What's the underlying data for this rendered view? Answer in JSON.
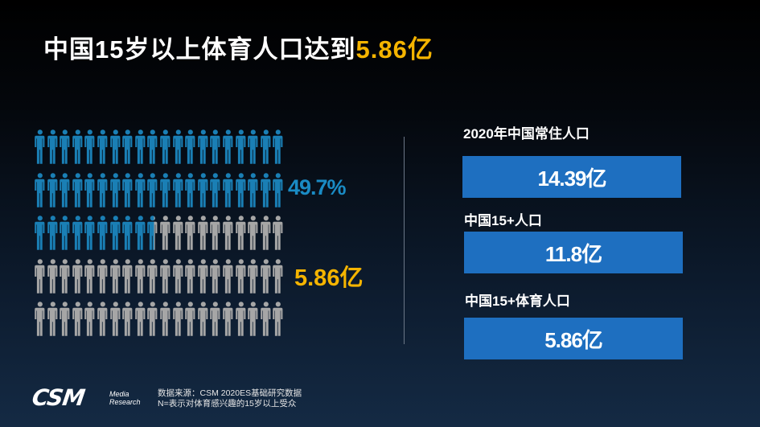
{
  "title": {
    "prefix": "中国15岁以上体育人口达到",
    "highlight": "5.86亿"
  },
  "infographic": {
    "percent_label": "49.7%",
    "count_label": "5.86亿",
    "icons_per_row": 20,
    "rows": 5,
    "fill_fraction": 0.497,
    "colors": {
      "filled": "#1a7fb5",
      "empty": "#a6a6a6"
    }
  },
  "stats": [
    {
      "label": "2020年中国常住人口",
      "value": "14.39亿"
    },
    {
      "label": "中国15+人口",
      "value": "11.8亿"
    },
    {
      "label": "中国15+体育人口",
      "value": "5.86亿"
    }
  ],
  "footer": {
    "logo": "CSM",
    "logo_sub_1": "Media",
    "logo_sub_2": "Research",
    "source_1": "数据来源：CSM 2020ES基础研究数据",
    "source_2": "N=表示对体育感兴趣的15岁以上受众"
  },
  "colors": {
    "accent": "#f5b400",
    "box": "#1e6fc0",
    "person_blue": "#1a7fb5",
    "person_gray": "#a6a6a6"
  }
}
